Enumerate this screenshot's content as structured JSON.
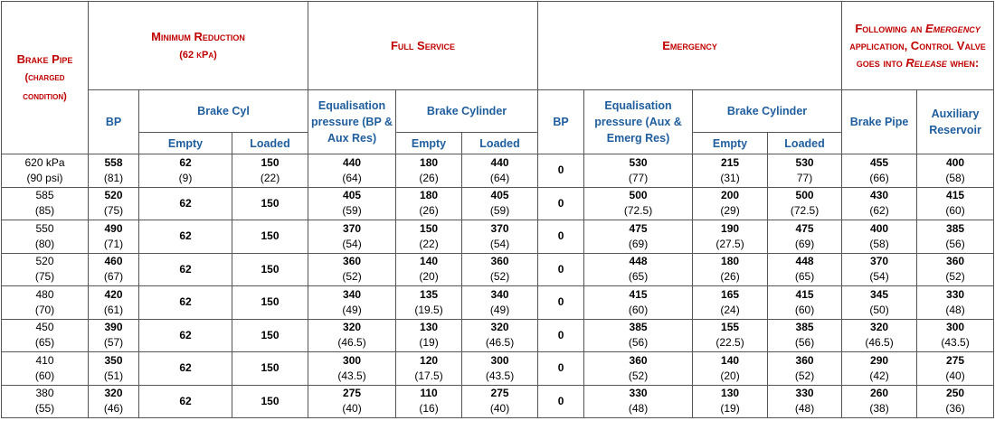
{
  "header": {
    "brake_pipe": "Brake Pipe",
    "brake_pipe_note": "(charged condition)",
    "min_reduction": "Minimum Reduction",
    "min_reduction_note": "(62 kPa)",
    "full_service": "Full Service",
    "emergency": "Emergency",
    "following_1": "Following an",
    "following_2": "Emergency",
    "following_3": "application, Control Valve goes into",
    "following_4": "Release",
    "following_5": "when:",
    "mr_bp": "BP",
    "mr_brake_cyl": "Brake Cyl",
    "mr_empty": "Empty",
    "mr_loaded": "Loaded",
    "fs_equalisation": "Equalisation pressure (BP & Aux Res)",
    "fs_brake_cyl": "Brake Cylinder",
    "fs_empty": "Empty",
    "fs_loaded": "Loaded",
    "em_bp": "BP",
    "em_equalisation": "Equalisation pressure (Aux & Emerg Res)",
    "em_brake_cyl": "Brake Cylinder",
    "em_empty": "Empty",
    "em_loaded": "Loaded",
    "rel_brake_pipe": "Brake Pipe",
    "rel_aux_res": "Auxiliary Reservoir"
  },
  "table": {
    "rows": [
      [
        [
          "620 kPa",
          "(90 psi)"
        ],
        [
          "558",
          "(81)"
        ],
        [
          "62",
          "(9)"
        ],
        [
          "150",
          "(22)"
        ],
        [
          "440",
          "(64)"
        ],
        [
          "180",
          "(26)"
        ],
        [
          "440",
          "(64)"
        ],
        "0",
        [
          "530",
          "(77)"
        ],
        [
          "215",
          "(31)"
        ],
        [
          "530",
          "77)"
        ],
        [
          "455",
          "(66)"
        ],
        [
          "400",
          "(58)"
        ]
      ],
      [
        [
          "585",
          "(85)"
        ],
        [
          "520",
          "(75)"
        ],
        "62",
        "150",
        [
          "405",
          "(59)"
        ],
        [
          "180",
          "(26)"
        ],
        [
          "405",
          "(59)"
        ],
        "0",
        [
          "500",
          "(72.5)"
        ],
        [
          "200",
          "(29)"
        ],
        [
          "500",
          "(72.5)"
        ],
        [
          "430",
          "(62)"
        ],
        [
          "415",
          "(60)"
        ]
      ],
      [
        [
          "550",
          "(80)"
        ],
        [
          "490",
          "(71)"
        ],
        "62",
        "150",
        [
          "370",
          "(54)"
        ],
        [
          "150",
          "(22)"
        ],
        [
          "370",
          "(54)"
        ],
        "0",
        [
          "475",
          "(69)"
        ],
        [
          "190",
          "(27.5)"
        ],
        [
          "475",
          "(69)"
        ],
        [
          "400",
          "(58)"
        ],
        [
          "385",
          "(56)"
        ]
      ],
      [
        [
          "520",
          "(75)"
        ],
        [
          "460",
          "(67)"
        ],
        "62",
        "150",
        [
          "360",
          "(52)"
        ],
        [
          "140",
          "(20)"
        ],
        [
          "360",
          "(52)"
        ],
        "0",
        [
          "448",
          "(65)"
        ],
        [
          "180",
          "(26)"
        ],
        [
          "448",
          "(65)"
        ],
        [
          "370",
          "(54)"
        ],
        [
          "360",
          "(52)"
        ]
      ],
      [
        [
          "480",
          "(70)"
        ],
        [
          "420",
          "(61)"
        ],
        "62",
        "150",
        [
          "340",
          "(49)"
        ],
        [
          "135",
          "(19.5)"
        ],
        [
          "340",
          "(49)"
        ],
        "0",
        [
          "415",
          "(60)"
        ],
        [
          "165",
          "(24)"
        ],
        [
          "415",
          "(60)"
        ],
        [
          "345",
          "(50)"
        ],
        [
          "330",
          "(48)"
        ]
      ],
      [
        [
          "450",
          "(65)"
        ],
        [
          "390",
          "(57)"
        ],
        "62",
        "150",
        [
          "320",
          "(46.5)"
        ],
        [
          "130",
          "(19)"
        ],
        [
          "320",
          "(46.5)"
        ],
        "0",
        [
          "385",
          "(56)"
        ],
        [
          "155",
          "(22.5)"
        ],
        [
          "385",
          "(56)"
        ],
        [
          "320",
          "(46.5)"
        ],
        [
          "300",
          "(43.5)"
        ]
      ],
      [
        [
          "410",
          "(60)"
        ],
        [
          "350",
          "(51)"
        ],
        "62",
        "150",
        [
          "300",
          "(43.5)"
        ],
        [
          "120",
          "(17.5)"
        ],
        [
          "300",
          "(43.5)"
        ],
        "0",
        [
          "360",
          "(52)"
        ],
        [
          "140",
          "(20)"
        ],
        [
          "360",
          "(52)"
        ],
        [
          "290",
          "(42)"
        ],
        [
          "275",
          "(40)"
        ]
      ],
      [
        [
          "380",
          "(55)"
        ],
        [
          "320",
          "(46)"
        ],
        "62",
        "150",
        [
          "275",
          "(40)"
        ],
        [
          "110",
          "(16)"
        ],
        [
          "275",
          "(40)"
        ],
        "0",
        [
          "330",
          "(48)"
        ],
        [
          "130",
          "(19)"
        ],
        [
          "330",
          "(48)"
        ],
        [
          "260",
          "(38)"
        ],
        [
          "250",
          "(36)"
        ]
      ]
    ]
  }
}
